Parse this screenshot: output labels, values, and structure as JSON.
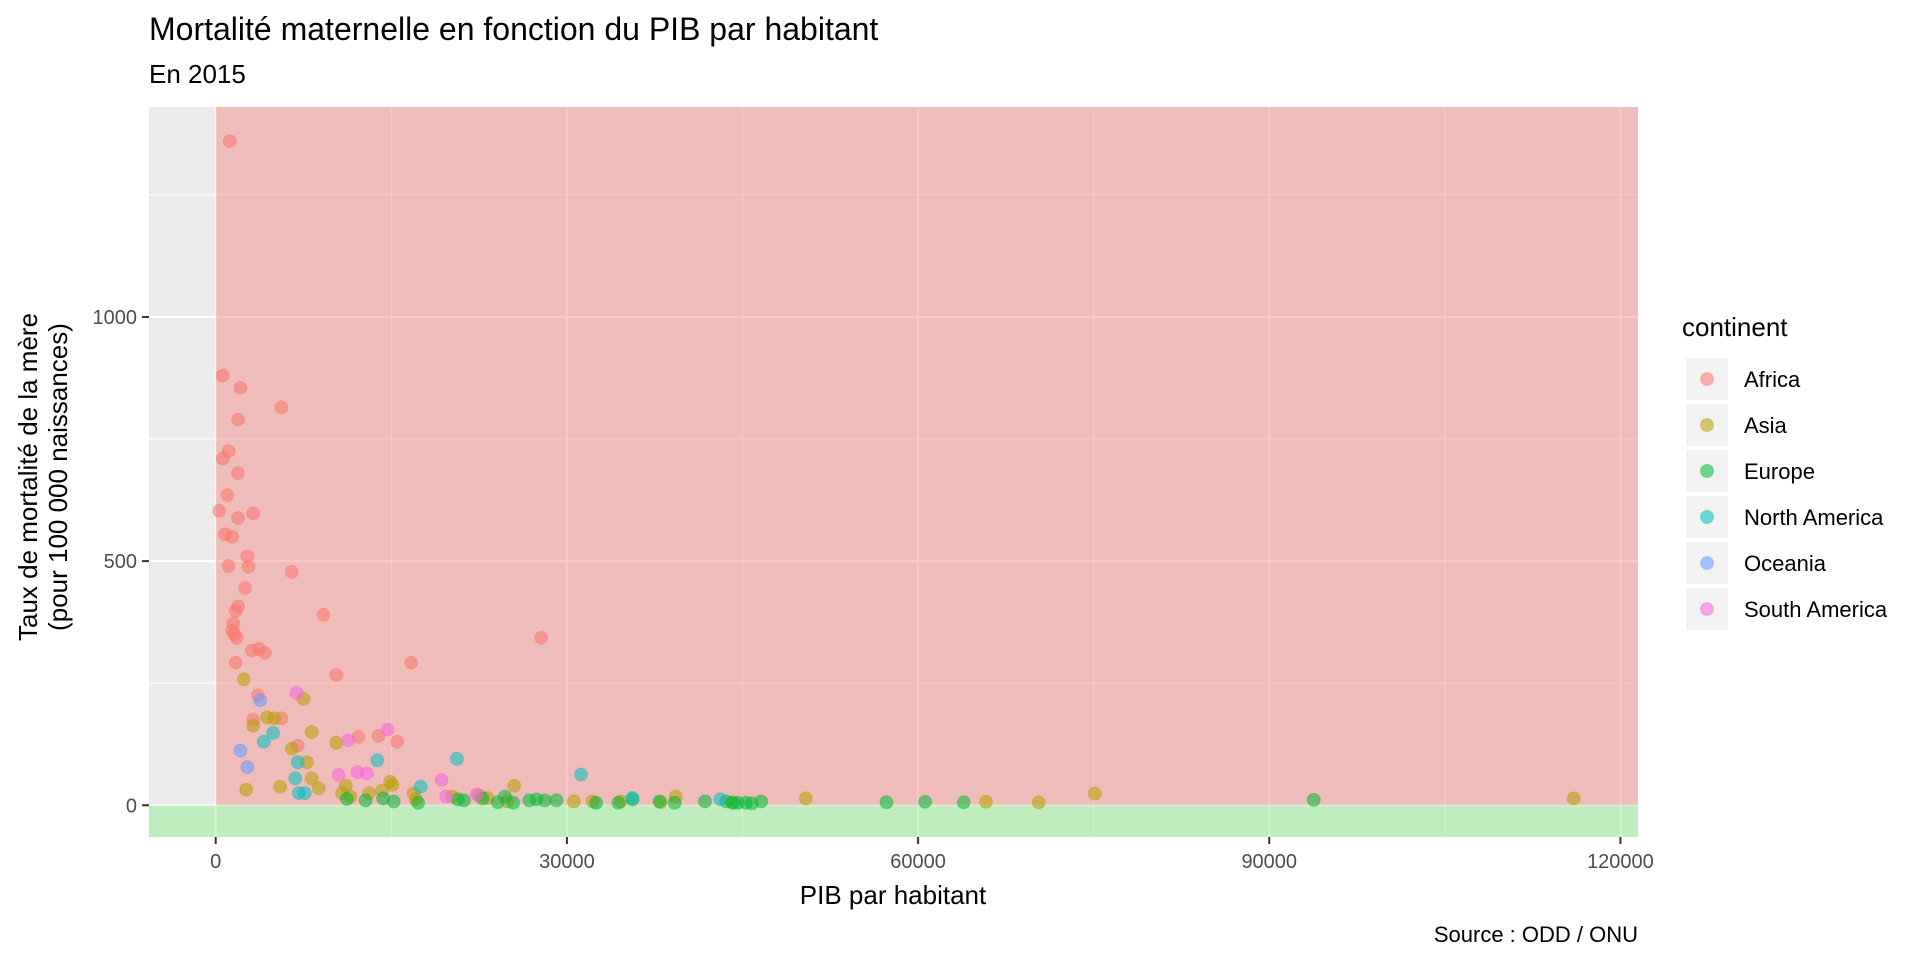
{
  "chart_data": {
    "type": "scatter",
    "title": "Mortalité maternelle en fonction du PIB par habitant",
    "subtitle": "En 2015",
    "xlabel": "PIB par habitant",
    "ylabel_line1": "Taux de mortalité de la mère",
    "ylabel_line2": "(pour 100 000 naissances)",
    "caption": "Source : ODD / ONU",
    "xlim": [
      -5700,
      121500
    ],
    "ylim": [
      -65,
      1430
    ],
    "x_ticks": [
      0,
      30000,
      60000,
      90000,
      120000
    ],
    "y_ticks": [
      0,
      500,
      1000
    ],
    "grid": true,
    "background_color": "#ebebeb",
    "bands": [
      {
        "name": "high-mortality-band",
        "x": [
          0,
          121500
        ],
        "y": [
          0,
          1430
        ],
        "color": "#f8766d",
        "opacity": 0.4
      },
      {
        "name": "low-mortality-band",
        "x": [
          -5700,
          121500
        ],
        "y": [
          -65,
          0
        ],
        "color": "#7cf07c",
        "opacity": 0.4
      }
    ],
    "legend": {
      "title": "continent",
      "position": "right",
      "items": [
        {
          "label": "Africa",
          "color": "#F8766D"
        },
        {
          "label": "Asia",
          "color": "#B79F00"
        },
        {
          "label": "Europe",
          "color": "#00BA38"
        },
        {
          "label": "North America",
          "color": "#00BFC4"
        },
        {
          "label": "Oceania",
          "color": "#619CFF"
        },
        {
          "label": "South America",
          "color": "#F564E3"
        }
      ]
    },
    "series": [
      {
        "name": "Africa",
        "color": "#F8766D",
        "points": [
          [
            1200,
            1360
          ],
          [
            600,
            880
          ],
          [
            2100,
            855
          ],
          [
            5600,
            815
          ],
          [
            1900,
            790
          ],
          [
            1100,
            725
          ],
          [
            600,
            710
          ],
          [
            1900,
            680
          ],
          [
            1000,
            635
          ],
          [
            300,
            603
          ],
          [
            1900,
            588
          ],
          [
            3200,
            598
          ],
          [
            800,
            555
          ],
          [
            1400,
            550
          ],
          [
            2700,
            510
          ],
          [
            1100,
            490
          ],
          [
            2800,
            488
          ],
          [
            6500,
            478
          ],
          [
            2500,
            445
          ],
          [
            1900,
            407
          ],
          [
            1700,
            398
          ],
          [
            9200,
            390
          ],
          [
            1500,
            372
          ],
          [
            1400,
            358
          ],
          [
            1600,
            350
          ],
          [
            1800,
            343
          ],
          [
            27800,
            343
          ],
          [
            3700,
            320
          ],
          [
            3100,
            317
          ],
          [
            4200,
            312
          ],
          [
            1700,
            292
          ],
          [
            16700,
            292
          ],
          [
            10300,
            267
          ],
          [
            3600,
            225
          ],
          [
            5600,
            178
          ],
          [
            3200,
            175
          ],
          [
            7000,
            122
          ],
          [
            12200,
            140
          ],
          [
            13900,
            142
          ],
          [
            15500,
            130
          ]
        ]
      },
      {
        "name": "Asia",
        "color": "#B79F00",
        "points": [
          [
            2400,
            258
          ],
          [
            7500,
            218
          ],
          [
            4400,
            180
          ],
          [
            5000,
            178
          ],
          [
            3200,
            163
          ],
          [
            8200,
            150
          ],
          [
            10300,
            128
          ],
          [
            6500,
            116
          ],
          [
            7800,
            88
          ],
          [
            8200,
            55
          ],
          [
            5500,
            38
          ],
          [
            2600,
            32
          ],
          [
            8800,
            35
          ],
          [
            11100,
            40
          ],
          [
            14900,
            48
          ],
          [
            15100,
            42
          ],
          [
            14200,
            30
          ],
          [
            16900,
            24
          ],
          [
            11500,
            18
          ],
          [
            10800,
            25
          ],
          [
            17100,
            12
          ],
          [
            22500,
            20
          ],
          [
            23200,
            15
          ],
          [
            24900,
            8
          ],
          [
            25500,
            40
          ],
          [
            13100,
            25
          ],
          [
            20200,
            18
          ],
          [
            30600,
            8
          ],
          [
            32200,
            8
          ],
          [
            34600,
            8
          ],
          [
            38000,
            6
          ],
          [
            39300,
            18
          ],
          [
            44100,
            6
          ],
          [
            50400,
            14
          ],
          [
            65800,
            7
          ],
          [
            70300,
            6
          ],
          [
            75100,
            24
          ],
          [
            116000,
            14
          ]
        ]
      },
      {
        "name": "Europe",
        "color": "#00BA38",
        "points": [
          [
            11200,
            13
          ],
          [
            12800,
            10
          ],
          [
            14300,
            14
          ],
          [
            15200,
            8
          ],
          [
            17300,
            5
          ],
          [
            20700,
            12
          ],
          [
            21200,
            10
          ],
          [
            22800,
            14
          ],
          [
            24100,
            6
          ],
          [
            24700,
            18
          ],
          [
            25400,
            5
          ],
          [
            26800,
            10
          ],
          [
            27400,
            12
          ],
          [
            28100,
            10
          ],
          [
            29100,
            10
          ],
          [
            32500,
            5
          ],
          [
            34400,
            5
          ],
          [
            35600,
            12
          ],
          [
            37900,
            8
          ],
          [
            39200,
            5
          ],
          [
            41800,
            8
          ],
          [
            43600,
            8
          ],
          [
            44200,
            5
          ],
          [
            44600,
            5
          ],
          [
            45300,
            5
          ],
          [
            45800,
            4
          ],
          [
            46600,
            8
          ],
          [
            57300,
            6
          ],
          [
            60600,
            7
          ],
          [
            63900,
            6
          ],
          [
            93800,
            11
          ]
        ]
      },
      {
        "name": "North America",
        "color": "#00BFC4",
        "points": [
          [
            4900,
            148
          ],
          [
            4100,
            130
          ],
          [
            13800,
            92
          ],
          [
            20600,
            95
          ],
          [
            7000,
            88
          ],
          [
            6800,
            55
          ],
          [
            7600,
            25
          ],
          [
            7100,
            25
          ],
          [
            17500,
            38
          ],
          [
            31200,
            63
          ],
          [
            35600,
            15
          ],
          [
            43100,
            12
          ]
        ]
      },
      {
        "name": "Oceania",
        "color": "#619CFF",
        "points": [
          [
            2100,
            112
          ],
          [
            2700,
            78
          ],
          [
            3800,
            215
          ]
        ]
      },
      {
        "name": "South America",
        "color": "#F564E3",
        "points": [
          [
            6900,
            230
          ],
          [
            14700,
            155
          ],
          [
            11300,
            133
          ],
          [
            12100,
            68
          ],
          [
            12900,
            65
          ],
          [
            10500,
            62
          ],
          [
            19300,
            52
          ],
          [
            19700,
            18
          ],
          [
            22300,
            22
          ]
        ]
      }
    ]
  }
}
